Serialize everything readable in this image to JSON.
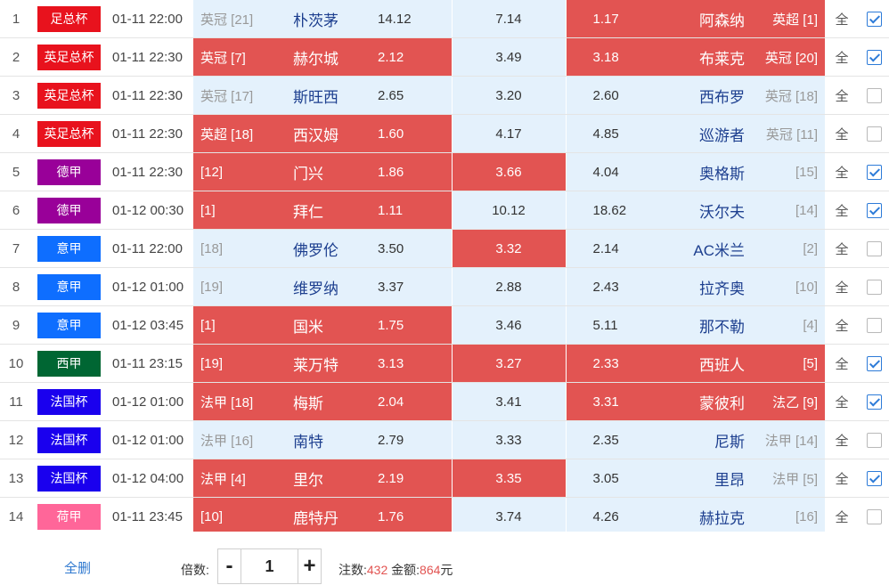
{
  "colors": {
    "red_cell": "#e25452",
    "light_cell": "#e4f1fc",
    "link_blue": "#2e78cf",
    "checkbox_blue": "#2d7bd8"
  },
  "matches": [
    {
      "index": "1",
      "league": "足总杯",
      "league_color": "#e8121d",
      "time": "01-11 22:00",
      "home_rank": "英冠 [21]",
      "home_rank_dim": true,
      "home_team": "朴茨茅",
      "home_odds": "14.12",
      "home_hl": false,
      "draw_odds": "7.14",
      "draw_hl": false,
      "away_odds": "1.17",
      "away_team": "阿森纳",
      "away_rank": "英超 [1]",
      "away_rank_dim": false,
      "away_hl": true,
      "all_label": "全",
      "checked": true
    },
    {
      "index": "2",
      "league": "英足总杯",
      "league_color": "#e8121d",
      "time": "01-11 22:30",
      "home_rank": "英冠 [7]",
      "home_rank_dim": false,
      "home_team": "赫尔城",
      "home_odds": "2.12",
      "home_hl": true,
      "draw_odds": "3.49",
      "draw_hl": false,
      "away_odds": "3.18",
      "away_team": "布莱克",
      "away_rank": "英冠 [20]",
      "away_rank_dim": false,
      "away_hl": true,
      "all_label": "全",
      "checked": true
    },
    {
      "index": "3",
      "league": "英足总杯",
      "league_color": "#e8121d",
      "time": "01-11 22:30",
      "home_rank": "英冠 [17]",
      "home_rank_dim": true,
      "home_team": "斯旺西",
      "home_odds": "2.65",
      "home_hl": false,
      "draw_odds": "3.20",
      "draw_hl": false,
      "away_odds": "2.60",
      "away_team": "西布罗",
      "away_rank": "英冠 [18]",
      "away_rank_dim": true,
      "away_hl": false,
      "all_label": "全",
      "checked": false
    },
    {
      "index": "4",
      "league": "英足总杯",
      "league_color": "#e8121d",
      "time": "01-11 22:30",
      "home_rank": "英超 [18]",
      "home_rank_dim": false,
      "home_team": "西汉姆",
      "home_odds": "1.60",
      "home_hl": true,
      "draw_odds": "4.17",
      "draw_hl": false,
      "away_odds": "4.85",
      "away_team": "巡游者",
      "away_rank": "英冠 [11]",
      "away_rank_dim": true,
      "away_hl": false,
      "all_label": "全",
      "checked": false
    },
    {
      "index": "5",
      "league": "德甲",
      "league_color": "#990099",
      "time": "01-11 22:30",
      "home_rank": "[12]",
      "home_rank_dim": false,
      "home_team": "门兴",
      "home_odds": "1.86",
      "home_hl": true,
      "draw_odds": "3.66",
      "draw_hl": true,
      "away_odds": "4.04",
      "away_team": "奥格斯",
      "away_rank": "[15]",
      "away_rank_dim": true,
      "away_hl": false,
      "all_label": "全",
      "checked": true
    },
    {
      "index": "6",
      "league": "德甲",
      "league_color": "#990099",
      "time": "01-12 00:30",
      "home_rank": "[1]",
      "home_rank_dim": false,
      "home_team": "拜仁",
      "home_odds": "1.11",
      "home_hl": true,
      "draw_odds": "10.12",
      "draw_hl": false,
      "away_odds": "18.62",
      "away_team": "沃尔夫",
      "away_rank": "[14]",
      "away_rank_dim": true,
      "away_hl": false,
      "all_label": "全",
      "checked": true
    },
    {
      "index": "7",
      "league": "意甲",
      "league_color": "#0e6eff",
      "time": "01-11 22:00",
      "home_rank": "[18]",
      "home_rank_dim": true,
      "home_team": "佛罗伦",
      "home_odds": "3.50",
      "home_hl": false,
      "draw_odds": "3.32",
      "draw_hl": true,
      "away_odds": "2.14",
      "away_team": "AC米兰",
      "away_rank": "[2]",
      "away_rank_dim": true,
      "away_hl": false,
      "all_label": "全",
      "checked": false
    },
    {
      "index": "8",
      "league": "意甲",
      "league_color": "#0e6eff",
      "time": "01-12 01:00",
      "home_rank": "[19]",
      "home_rank_dim": true,
      "home_team": "维罗纳",
      "home_odds": "3.37",
      "home_hl": false,
      "draw_odds": "2.88",
      "draw_hl": false,
      "away_odds": "2.43",
      "away_team": "拉齐奥",
      "away_rank": "[10]",
      "away_rank_dim": true,
      "away_hl": false,
      "all_label": "全",
      "checked": false
    },
    {
      "index": "9",
      "league": "意甲",
      "league_color": "#0e6eff",
      "time": "01-12 03:45",
      "home_rank": "[1]",
      "home_rank_dim": false,
      "home_team": "国米",
      "home_odds": "1.75",
      "home_hl": true,
      "draw_odds": "3.46",
      "draw_hl": false,
      "away_odds": "5.11",
      "away_team": "那不勒",
      "away_rank": "[4]",
      "away_rank_dim": true,
      "away_hl": false,
      "all_label": "全",
      "checked": false
    },
    {
      "index": "10",
      "league": "西甲",
      "league_color": "#006633",
      "time": "01-11 23:15",
      "home_rank": "[19]",
      "home_rank_dim": false,
      "home_team": "莱万特",
      "home_odds": "3.13",
      "home_hl": true,
      "draw_odds": "3.27",
      "draw_hl": true,
      "away_odds": "2.33",
      "away_team": "西班人",
      "away_rank": "[5]",
      "away_rank_dim": false,
      "away_hl": true,
      "all_label": "全",
      "checked": true
    },
    {
      "index": "11",
      "league": "法国杯",
      "league_color": "#1a00ee",
      "time": "01-12 01:00",
      "home_rank": "法甲 [18]",
      "home_rank_dim": false,
      "home_team": "梅斯",
      "home_odds": "2.04",
      "home_hl": true,
      "draw_odds": "3.41",
      "draw_hl": false,
      "away_odds": "3.31",
      "away_team": "蒙彼利",
      "away_rank": "法乙 [9]",
      "away_rank_dim": false,
      "away_hl": true,
      "all_label": "全",
      "checked": true
    },
    {
      "index": "12",
      "league": "法国杯",
      "league_color": "#1a00ee",
      "time": "01-12 01:00",
      "home_rank": "法甲 [16]",
      "home_rank_dim": true,
      "home_team": "南特",
      "home_odds": "2.79",
      "home_hl": false,
      "draw_odds": "3.33",
      "draw_hl": false,
      "away_odds": "2.35",
      "away_team": "尼斯",
      "away_rank": "法甲 [14]",
      "away_rank_dim": true,
      "away_hl": false,
      "all_label": "全",
      "checked": false
    },
    {
      "index": "13",
      "league": "法国杯",
      "league_color": "#1a00ee",
      "time": "01-12 04:00",
      "home_rank": "法甲 [4]",
      "home_rank_dim": false,
      "home_team": "里尔",
      "home_odds": "2.19",
      "home_hl": true,
      "draw_odds": "3.35",
      "draw_hl": true,
      "away_odds": "3.05",
      "away_team": "里昂",
      "away_rank": "法甲 [5]",
      "away_rank_dim": true,
      "away_hl": false,
      "all_label": "全",
      "checked": true
    },
    {
      "index": "14",
      "league": "荷甲",
      "league_color": "#ff6699",
      "time": "01-11 23:45",
      "home_rank": "[10]",
      "home_rank_dim": false,
      "home_team": "鹿特丹",
      "home_odds": "1.76",
      "home_hl": true,
      "draw_odds": "3.74",
      "draw_hl": false,
      "away_odds": "4.26",
      "away_team": "赫拉克",
      "away_rank": "[16]",
      "away_rank_dim": true,
      "away_hl": false,
      "all_label": "全",
      "checked": false
    }
  ],
  "footer": {
    "clear_all": "全删",
    "multiplier_label": "倍数:",
    "minus": "-",
    "plus": "+",
    "multiplier_value": "1",
    "bets_label": "注数:",
    "bets_value": "432",
    "amount_label": "金额:",
    "amount_value": "864",
    "currency": "元"
  }
}
